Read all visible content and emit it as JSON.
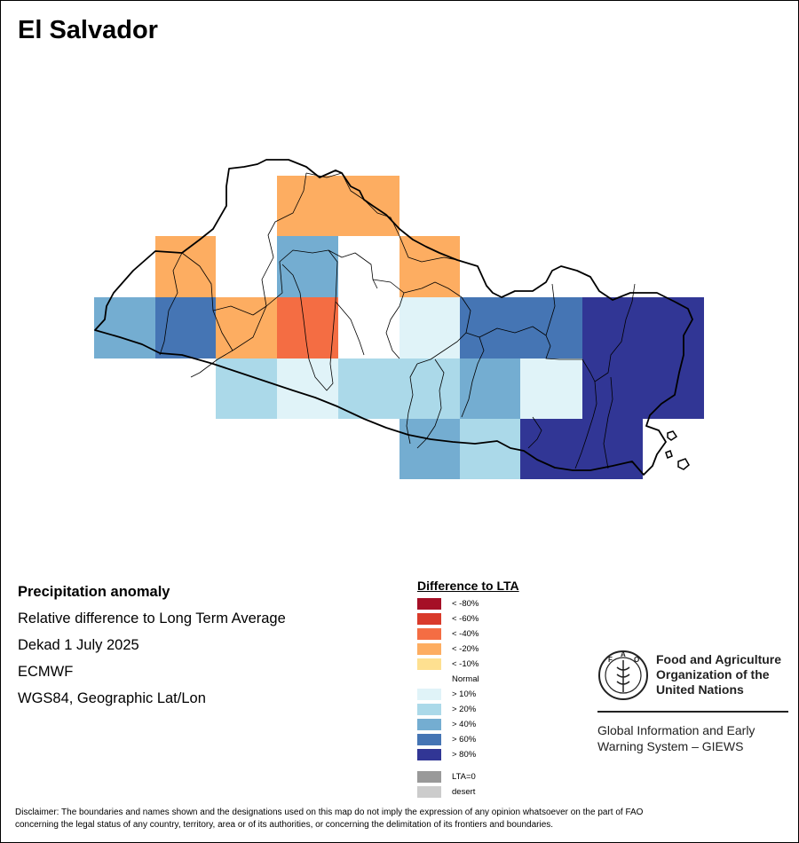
{
  "title": "El Salvador",
  "info": {
    "line1": "Precipitation anomaly",
    "line2": "Relative difference to Long Term Average",
    "line3": "Dekad 1 July 2025",
    "line4": "ECMWF",
    "line5": "WGS84, Geographic Lat/Lon"
  },
  "legend": {
    "title": "Difference to LTA",
    "items": [
      {
        "label": "< -80%",
        "color": "#a50f26"
      },
      {
        "label": "< -60%",
        "color": "#d93a2a"
      },
      {
        "label": "< -40%",
        "color": "#f46d43"
      },
      {
        "label": "< -20%",
        "color": "#fdad61"
      },
      {
        "label": "< -10%",
        "color": "#fee090"
      },
      {
        "label": "Normal",
        "color": "#ffffff"
      },
      {
        "label": "> 10%",
        "color": "#e0f3f8"
      },
      {
        "label": "> 20%",
        "color": "#abd9e9"
      },
      {
        "label": "> 40%",
        "color": "#74add1"
      },
      {
        "label": "> 60%",
        "color": "#4575b4"
      },
      {
        "label": "> 80%",
        "color": "#313695"
      }
    ],
    "extra": [
      {
        "label": "LTA=0",
        "color": "#999999"
      },
      {
        "label": "desert",
        "color": "#cccccc"
      }
    ]
  },
  "org": {
    "name_line1": "Food and Agriculture",
    "name_line2": "Organization of the",
    "name_line3": "United Nations",
    "system_line1": "Global Information and Early",
    "system_line2": "Warning System – GIEWS",
    "logo_text": "FAO FIAT PANIS"
  },
  "disclaimer": {
    "line1": "Disclaimer: The boundaries and names shown and the designations used on this map do not imply the expression of any opinion whatsoever on the part of FAO",
    "line2": "concerning the legal status of any country, territory, area or of its authorities, or concerning the delimitation of its frontiers and boundaries."
  }
}
